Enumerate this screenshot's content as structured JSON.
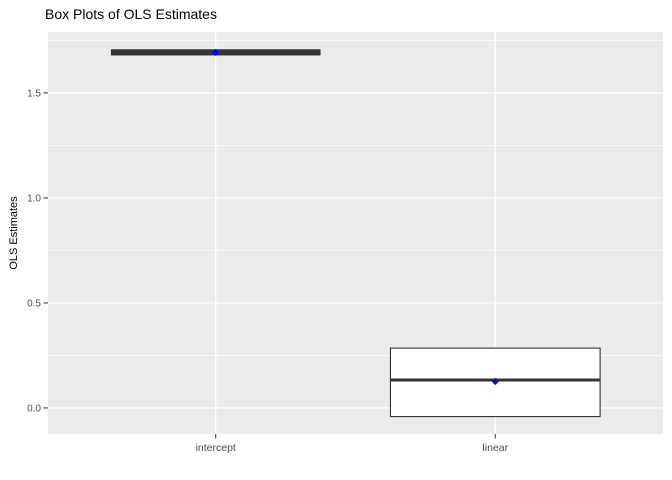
{
  "chart_data": {
    "type": "boxplot",
    "title": "Box Plots of OLS Estimates",
    "xlabel": "",
    "ylabel": "OLS Estimates",
    "categories": [
      "intercept",
      "linear"
    ],
    "series": [
      {
        "label": "intercept",
        "min": 1.684,
        "q1": 1.684,
        "median": 1.693,
        "q3": 1.702,
        "max": 1.702,
        "mean": 1.693
      },
      {
        "label": "linear",
        "min": -0.041,
        "q1": -0.041,
        "median": 0.133,
        "q3": 0.285,
        "max": 0.285,
        "mean": 0.126
      }
    ],
    "y_ticks": {
      "values": [
        0.0,
        0.5,
        1.0,
        1.5
      ],
      "labels": [
        "0.0",
        "0.5",
        "1.0",
        "1.5"
      ]
    },
    "y_minor_ticks": [
      0.25,
      0.75,
      1.25,
      1.75
    ],
    "ylim": [
      -0.124,
      1.79
    ],
    "grid": "on",
    "legend": "none",
    "colors": {
      "panel_background": "#EBEBEB",
      "gridline": "#FFFFFF",
      "box_stroke": "#333333",
      "box_fill": "#FFFFFF",
      "mean_point": "#0000FF",
      "tick_label": "#4D4D4D",
      "tick_mark": "#333333",
      "title_text": "#000000"
    }
  }
}
